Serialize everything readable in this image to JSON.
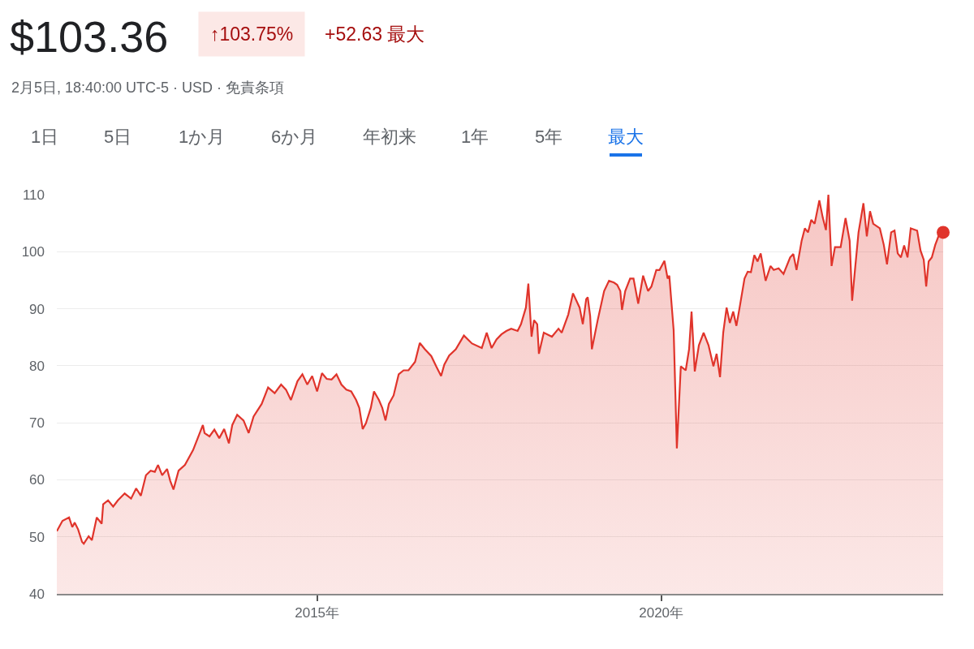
{
  "chart_data": {
    "type": "area",
    "title": "$103.36",
    "subtitle": "2月5日, 18:40:00 UTC-5 · USD · 免責条項",
    "annotations": [
      "↑103.75%",
      "+52.63 最大",
      "1日",
      "5日",
      "1か月",
      "6か月",
      "年初来",
      "1年",
      "5年",
      "最大"
    ],
    "xlim": [
      "2011-03-22",
      "2024-02-05"
    ],
    "xticks": [
      {
        "value": "2015-01-01",
        "label": "2015年"
      },
      {
        "value": "2020-01-01",
        "label": "2020年"
      }
    ],
    "ylim": [
      40,
      110
    ],
    "yticks": [
      40,
      50,
      60,
      70,
      80,
      90,
      100,
      110
    ],
    "grid": "y",
    "series": [
      {
        "color": "#e0342b",
        "x": [
          "2011-03-22",
          "2011-04-21",
          "2011-05-26",
          "2011-06-12",
          "2011-06-25",
          "2011-07-13",
          "2011-08-03",
          "2011-08-12",
          "2011-09-07",
          "2011-09-24",
          "2011-10-20",
          "2011-11-15",
          "2011-11-23",
          "2011-12-19",
          "2012-01-15",
          "2012-02-09",
          "2012-03-16",
          "2012-04-19",
          "2012-05-16",
          "2012-06-10",
          "2012-07-07",
          "2012-08-01",
          "2012-08-23",
          "2012-09-09",
          "2012-10-01",
          "2012-10-27",
          "2012-11-13",
          "2012-11-30",
          "2012-12-27",
          "2013-01-30",
          "2013-03-14",
          "2013-04-09",
          "2013-05-05",
          "2013-05-14",
          "2013-06-09",
          "2013-07-05",
          "2013-07-31",
          "2013-08-26",
          "2013-09-20",
          "2013-10-08",
          "2013-11-03",
          "2013-12-07",
          "2014-01-03",
          "2014-01-29",
          "2014-03-13",
          "2014-04-16",
          "2014-05-21",
          "2014-06-24",
          "2014-07-20",
          "2014-08-15",
          "2014-09-19",
          "2014-10-15",
          "2014-11-10",
          "2014-12-06",
          "2015-01-01",
          "2015-01-27",
          "2015-02-21",
          "2015-03-19",
          "2015-04-14",
          "2015-05-10",
          "2015-06-05",
          "2015-07-01",
          "2015-07-27",
          "2015-08-13",
          "2015-08-31",
          "2015-09-17",
          "2015-10-13",
          "2015-10-30",
          "2015-11-25",
          "2015-12-13",
          "2015-12-30",
          "2016-01-17",
          "2016-02-11",
          "2016-03-09",
          "2016-04-04",
          "2016-04-30",
          "2016-06-04",
          "2016-06-29",
          "2016-07-26",
          "2016-08-29",
          "2016-09-24",
          "2016-10-20",
          "2016-11-06",
          "2016-12-02",
          "2017-01-06",
          "2017-02-18",
          "2017-04-02",
          "2017-05-24",
          "2017-06-19",
          "2017-07-15",
          "2017-08-10",
          "2017-09-05",
          "2017-10-01",
          "2017-10-27",
          "2017-11-30",
          "2017-12-18",
          "2018-01-13",
          "2018-01-26",
          "2018-02-12",
          "2018-02-25",
          "2018-03-14",
          "2018-03-23",
          "2018-04-18",
          "2018-05-31",
          "2018-07-05",
          "2018-07-22",
          "2018-08-26",
          "2018-09-20",
          "2018-10-25",
          "2018-11-11",
          "2018-11-29",
          "2018-12-07",
          "2018-12-20",
          "2018-12-29",
          "2019-01-29",
          "2019-03-04",
          "2019-03-30",
          "2019-04-25",
          "2019-05-12",
          "2019-05-29",
          "2019-06-07",
          "2019-06-24",
          "2019-07-20",
          "2019-08-07",
          "2019-09-01",
          "2019-09-27",
          "2019-10-23",
          "2019-11-10",
          "2019-12-06",
          "2019-12-23",
          "2020-01-18",
          "2020-02-04",
          "2020-02-13",
          "2020-03-07",
          "2020-03-24",
          "2020-04-14",
          "2020-05-10",
          "2020-05-28",
          "2020-06-10",
          "2020-06-27",
          "2020-07-19",
          "2020-08-13",
          "2020-09-08",
          "2020-10-04",
          "2020-10-21",
          "2020-11-08",
          "2020-11-25",
          "2020-12-13",
          "2020-12-30",
          "2021-01-17",
          "2021-02-03",
          "2021-02-20",
          "2021-03-18",
          "2021-04-04",
          "2021-04-21",
          "2021-05-09",
          "2021-05-26",
          "2021-06-12",
          "2021-07-08",
          "2021-08-03",
          "2021-08-20",
          "2021-09-15",
          "2021-10-11",
          "2021-11-15",
          "2021-12-02",
          "2021-12-19",
          "2022-01-15",
          "2022-02-01",
          "2022-02-18",
          "2022-03-07",
          "2022-03-25",
          "2022-04-19",
          "2022-05-07",
          "2022-05-24",
          "2022-06-06",
          "2022-06-23",
          "2022-07-11",
          "2022-08-10",
          "2022-09-05",
          "2022-09-27",
          "2022-10-10",
          "2022-10-27",
          "2022-11-13",
          "2022-12-09",
          "2022-12-27",
          "2023-01-13",
          "2023-01-30",
          "2023-03-06",
          "2023-03-27",
          "2023-04-13",
          "2023-05-05",
          "2023-05-23",
          "2023-06-09",
          "2023-06-26",
          "2023-07-13",
          "2023-07-31",
          "2023-08-17",
          "2023-09-20",
          "2023-10-08",
          "2023-10-25",
          "2023-11-07",
          "2023-11-20",
          "2023-12-07",
          "2023-12-25",
          "2024-01-11",
          "2024-01-25",
          "2024-02-05"
        ],
        "values": [
          51.0,
          52.8,
          53.4,
          51.7,
          52.5,
          51.3,
          49.1,
          48.8,
          50.1,
          49.4,
          53.4,
          52.3,
          55.7,
          56.4,
          55.3,
          56.4,
          57.6,
          56.7,
          58.5,
          57.2,
          60.8,
          61.6,
          61.4,
          62.6,
          60.8,
          61.9,
          59.8,
          58.3,
          61.6,
          62.6,
          65.2,
          67.4,
          69.6,
          68.2,
          67.6,
          68.8,
          67.3,
          68.9,
          66.4,
          69.6,
          71.4,
          70.4,
          68.2,
          71.1,
          73.3,
          76.2,
          75.2,
          76.7,
          75.8,
          74.0,
          77.3,
          78.5,
          76.7,
          78.2,
          75.5,
          78.7,
          77.7,
          77.6,
          78.5,
          76.7,
          75.8,
          75.5,
          74.0,
          72.6,
          68.9,
          69.9,
          72.6,
          75.5,
          74.0,
          72.6,
          70.4,
          73.3,
          74.8,
          78.5,
          79.2,
          79.2,
          80.7,
          84.0,
          82.9,
          81.7,
          79.9,
          78.2,
          80.2,
          81.8,
          82.9,
          85.3,
          83.9,
          83.1,
          85.8,
          83.1,
          84.6,
          85.5,
          86.1,
          86.5,
          86.1,
          87.3,
          90.2,
          94.4,
          85.1,
          88.0,
          87.3,
          82.1,
          85.8,
          85.1,
          86.5,
          85.8,
          89.0,
          92.7,
          90.2,
          87.3,
          91.7,
          92.0,
          88.7,
          82.9,
          88.0,
          93.1,
          94.9,
          94.6,
          94.2,
          93.1,
          89.8,
          93.1,
          95.3,
          95.3,
          90.9,
          95.8,
          93.1,
          93.9,
          96.8,
          96.8,
          98.4,
          95.3,
          95.8,
          86.2,
          65.5,
          79.9,
          79.2,
          82.9,
          89.5,
          79.0,
          83.6,
          85.8,
          83.6,
          79.9,
          82.1,
          78.0,
          85.8,
          90.2,
          87.5,
          89.5,
          87.0,
          90.2,
          95.3,
          96.5,
          96.4,
          99.4,
          98.3,
          99.7,
          94.9,
          97.5,
          96.8,
          97.1,
          96.1,
          99.0,
          99.6,
          96.8,
          101.9,
          104.1,
          103.4,
          105.6,
          104.9,
          109.0,
          106.0,
          103.8,
          110.0,
          97.5,
          100.8,
          100.8,
          105.9,
          101.9,
          91.4,
          97.5,
          103.4,
          108.5,
          102.7,
          107.1,
          104.9,
          104.1,
          101.2,
          97.8,
          103.4,
          103.7,
          99.7,
          99.0,
          101.1,
          99.0,
          104.1,
          103.7,
          100.2,
          98.6,
          93.9,
          98.3,
          99.0,
          101.2,
          102.7,
          103.4,
          103.4
        ]
      },
      {
        "type": "scatter",
        "color": "#e0342b",
        "marker": "circle",
        "x": [
          "2024-02-05"
        ],
        "values": [
          103.4
        ]
      }
    ]
  }
}
